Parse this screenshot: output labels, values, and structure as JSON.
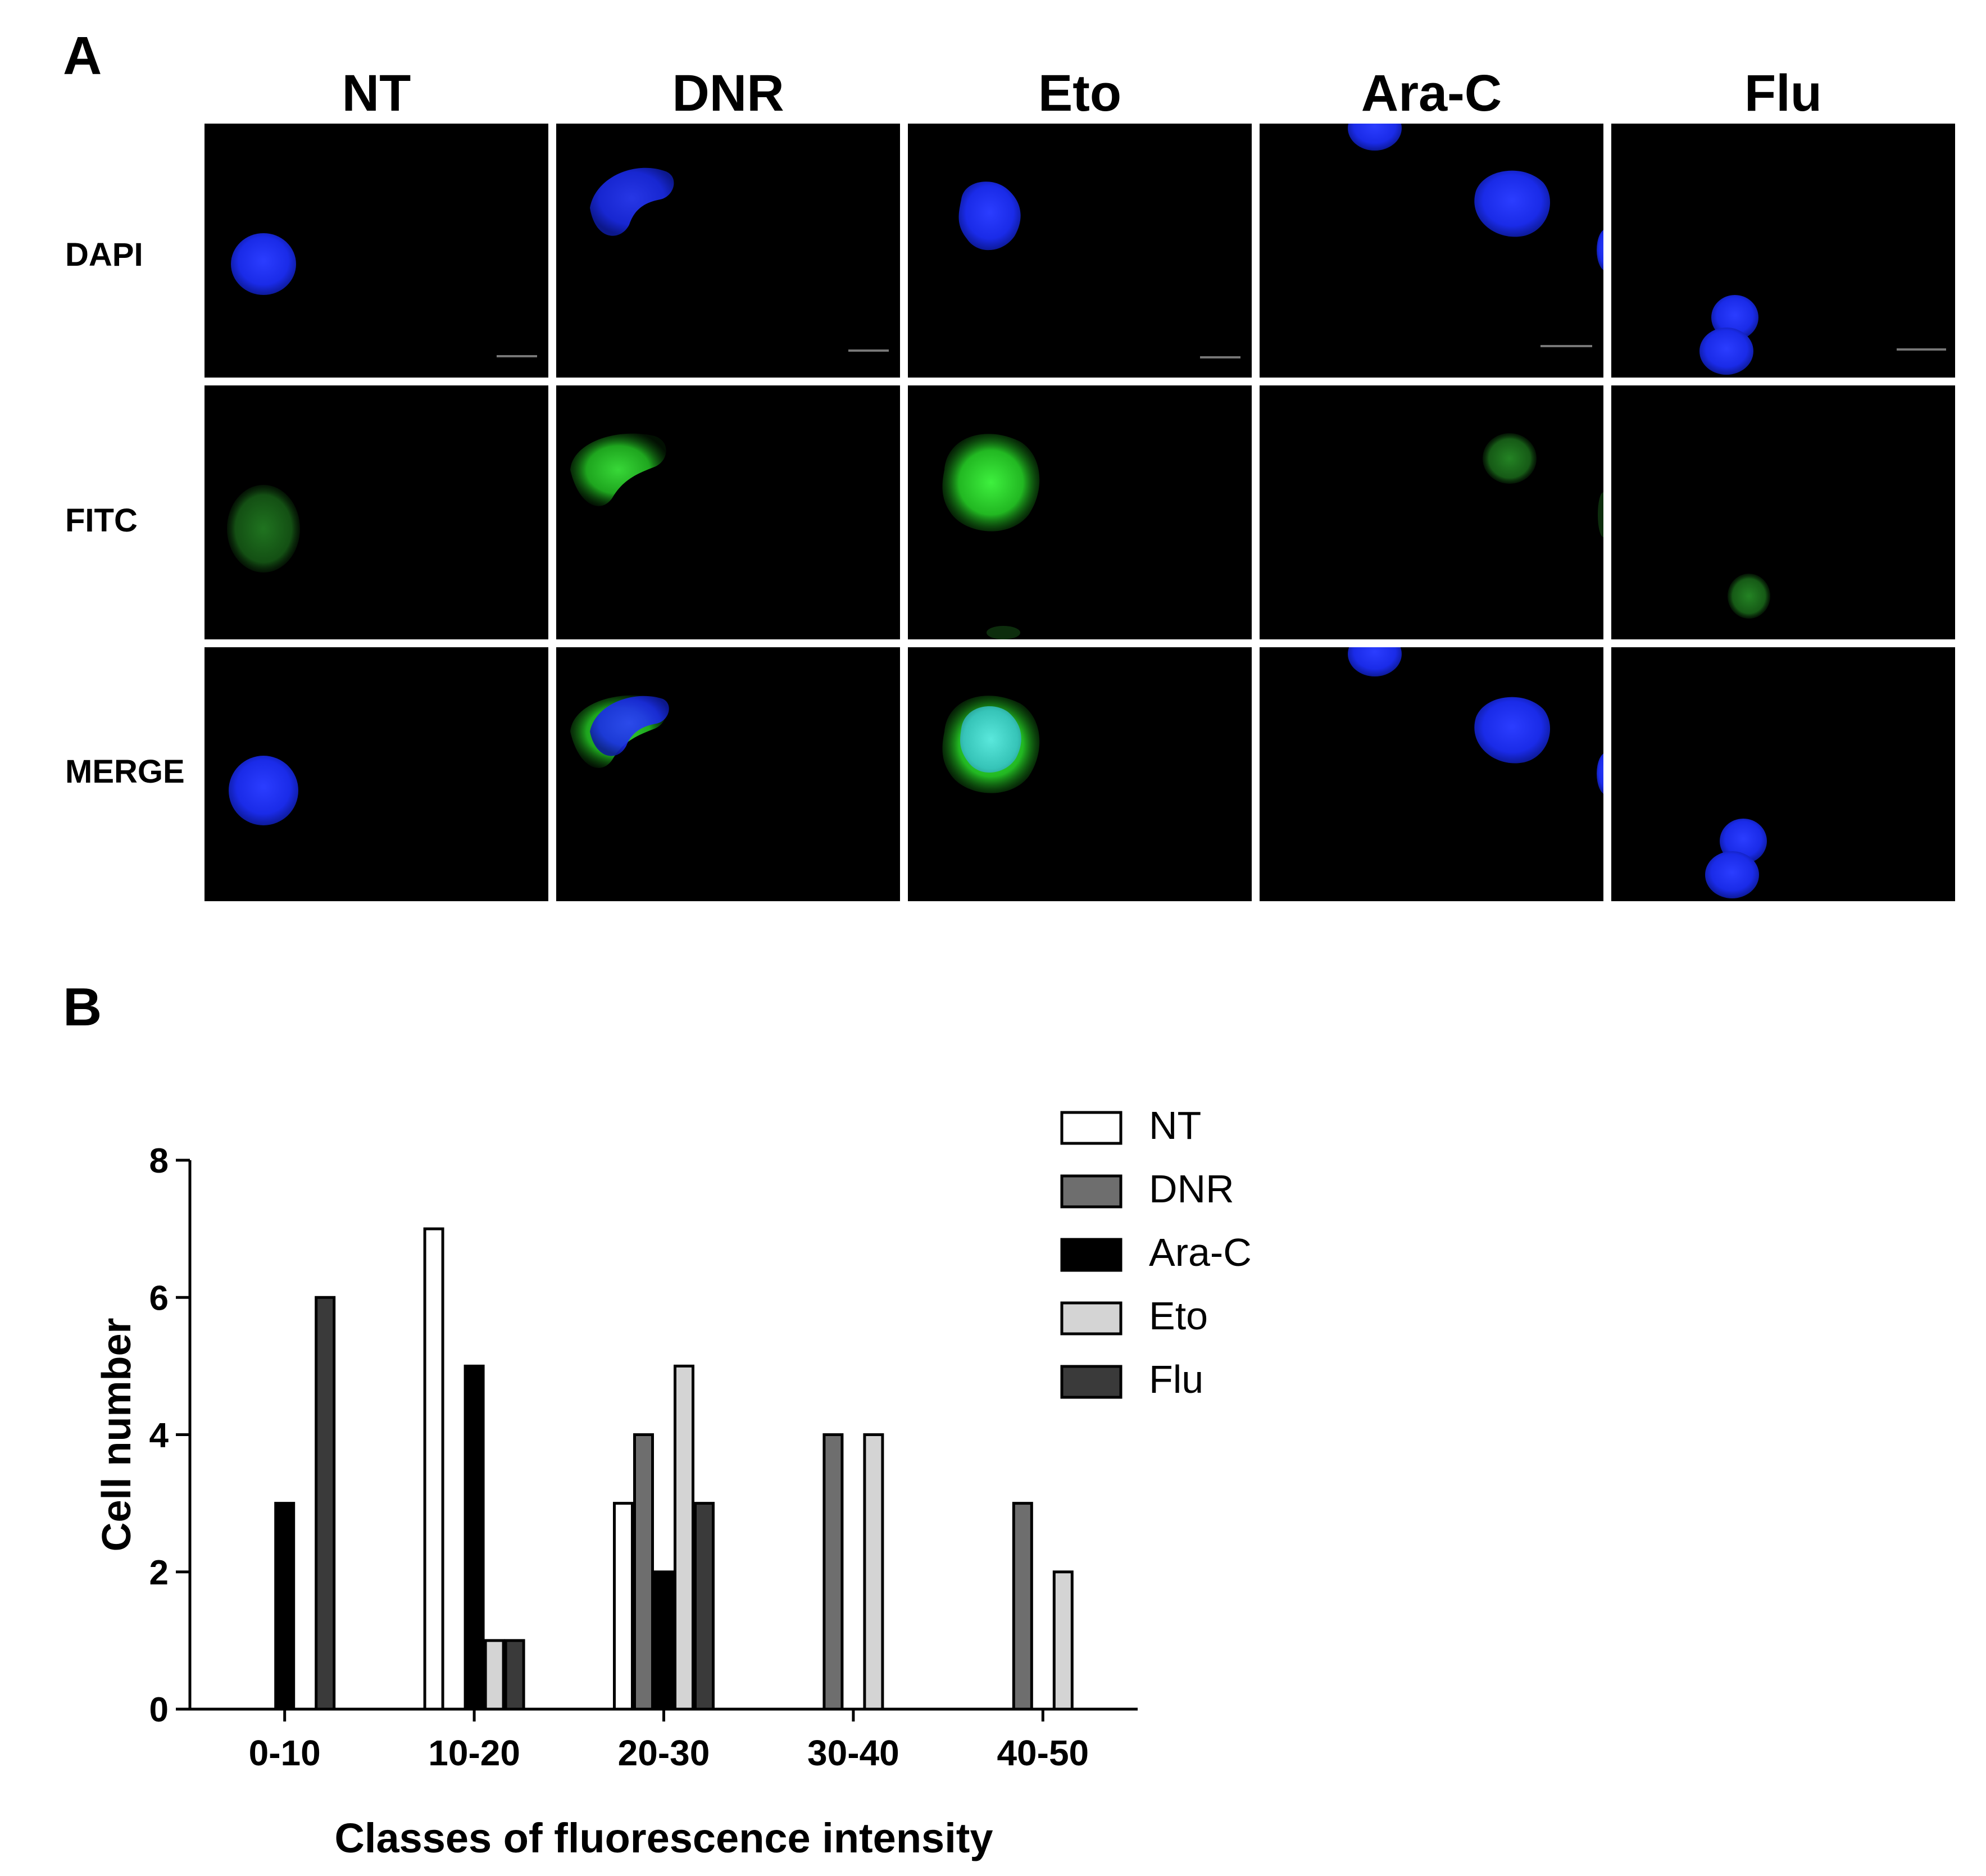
{
  "panel_a": {
    "letter": "A",
    "columns": [
      "NT",
      "DNR",
      "Eto",
      "Ara-C",
      "Flu"
    ],
    "rows": [
      "DAPI",
      "FITC",
      "MERGE"
    ],
    "colors": {
      "dapi": "#1a2be8",
      "fitc": "#29c829",
      "merge_overlap": "#3fd6c8",
      "background": "#000000"
    }
  },
  "panel_b": {
    "letter": "B"
  },
  "chart_data": {
    "type": "bar",
    "categories": [
      "0-10",
      "10-20",
      "20-30",
      "30-40",
      "40-50"
    ],
    "series": [
      {
        "name": "NT",
        "values": [
          0,
          7,
          3,
          0,
          0
        ],
        "color": "#ffffff"
      },
      {
        "name": "DNR",
        "values": [
          0,
          0,
          4,
          4,
          3
        ],
        "color": "#6e6e6e"
      },
      {
        "name": "Ara-C",
        "values": [
          3,
          5,
          2,
          0,
          0
        ],
        "color": "#000000"
      },
      {
        "name": "Eto",
        "values": [
          0,
          1,
          5,
          4,
          2
        ],
        "color": "#d4d4d4"
      },
      {
        "name": "Flu",
        "values": [
          6,
          1,
          3,
          0,
          0
        ],
        "color": "#3a3a3a"
      }
    ],
    "xlabel": "Classes of fluorescence intensity",
    "ylabel": "Cell number",
    "ylim": [
      0,
      8
    ],
    "yticks": [
      0,
      2,
      4,
      6,
      8
    ],
    "legend_position": "top-right",
    "grid": false
  }
}
